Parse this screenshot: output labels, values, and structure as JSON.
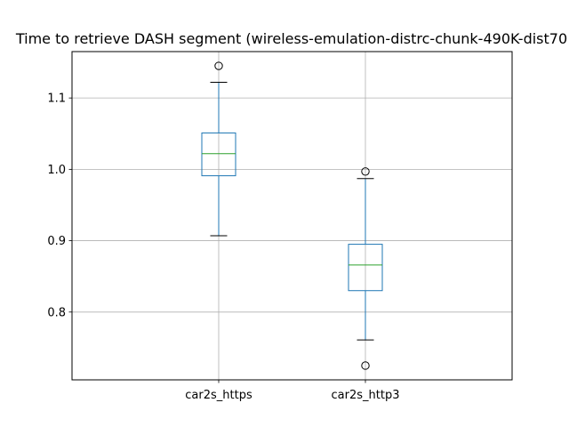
{
  "chart_data": {
    "type": "box",
    "title": "Time to retrieve DASH segment (wireless-emulation-distrc-chunk-490K-dist70",
    "xlabel": "",
    "ylabel": "",
    "ylim": [
      0.705,
      1.165
    ],
    "yticks": [
      0.8,
      0.9,
      1.0,
      1.1
    ],
    "ytick_labels": [
      "0.8",
      "0.9",
      "1.0",
      "1.1"
    ],
    "grid": true,
    "categories": [
      "car2s_https",
      "car2s_http3"
    ],
    "boxes": [
      {
        "name": "car2s_https",
        "whisker_low": 0.907,
        "q1": 0.991,
        "median": 1.022,
        "q3": 1.051,
        "whisker_high": 1.122,
        "outliers": [
          1.145
        ]
      },
      {
        "name": "car2s_http3",
        "whisker_low": 0.761,
        "q1": 0.83,
        "median": 0.866,
        "q3": 0.895,
        "whisker_high": 0.987,
        "outliers": [
          0.997,
          0.725
        ]
      }
    ],
    "colors": {
      "box": "#1f77b4",
      "median": "#2ca02c",
      "whisker": "#000000",
      "grid": "#b0b0b0"
    }
  }
}
